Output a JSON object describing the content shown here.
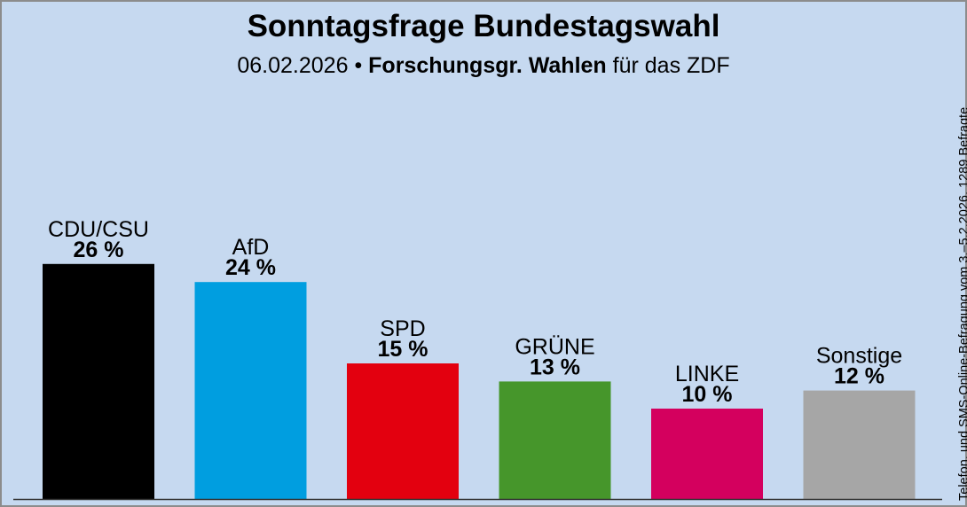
{
  "chart_data": {
    "type": "bar",
    "title": "Sonntagsfrage Bundestagswahl",
    "subtitle": {
      "date": "06.02.2026",
      "separator": "•",
      "institute": "Forschungsgr. Wahlen",
      "suffix": "für das ZDF"
    },
    "note": "Telefon. und SMS-Online-Befragung vom 3.–5.2.2026, 1289 Befragte",
    "categories": [
      "CDU/CSU",
      "AfD",
      "SPD",
      "GRÜNE",
      "LINKE",
      "Sonstige"
    ],
    "values": [
      26,
      24,
      15,
      13,
      10,
      12
    ],
    "value_labels": [
      "26 %",
      "24 %",
      "15 %",
      "13 %",
      "10 %",
      "12 %"
    ],
    "colors": [
      "#000000",
      "#009ee0",
      "#e3000f",
      "#46962b",
      "#d4005e",
      "#a6a6a6"
    ],
    "background": "#c6d9f0",
    "unit": "%",
    "ylim": [
      0,
      30
    ],
    "grid": false
  }
}
